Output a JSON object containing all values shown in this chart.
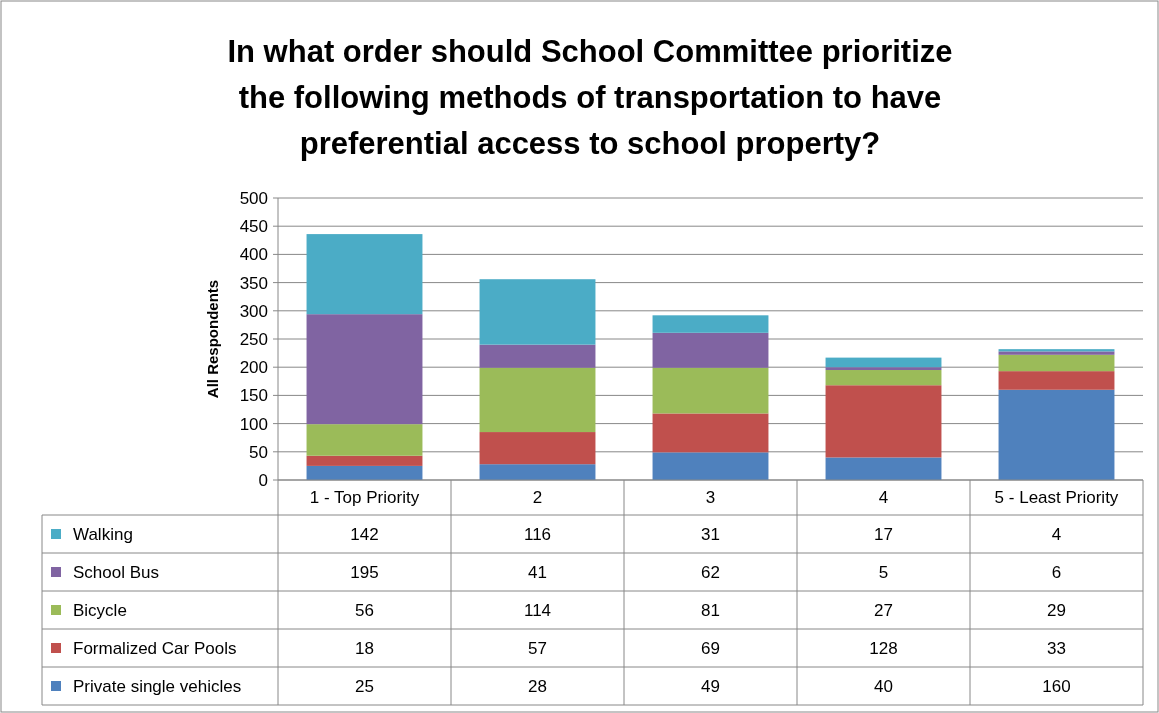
{
  "chart_data": {
    "type": "bar",
    "stacked": true,
    "title": "In what order should School Committee prioritize the following methods of transportation to have preferential access to school property?",
    "ylabel": "All Respondents",
    "categories": [
      "1 - Top Priority",
      "2",
      "3",
      "4",
      "5 - Least Priority"
    ],
    "ylim": [
      0,
      500
    ],
    "yticks": [
      0,
      50,
      100,
      150,
      200,
      250,
      300,
      350,
      400,
      450,
      500
    ],
    "grid": "y",
    "legend": "left",
    "data_labels": true,
    "series": [
      {
        "name": "Private single vehicles",
        "color": "#4f81bd",
        "values": [
          25,
          28,
          49,
          40,
          160
        ]
      },
      {
        "name": "Formalized Car Pools",
        "color": "#c0504d",
        "values": [
          18,
          57,
          69,
          128,
          33
        ]
      },
      {
        "name": "Bicycle",
        "color": "#9bbb59",
        "values": [
          56,
          114,
          81,
          27,
          29
        ]
      },
      {
        "name": "School Bus",
        "color": "#8064a2",
        "values": [
          195,
          41,
          62,
          5,
          6
        ]
      },
      {
        "name": "Walking",
        "color": "#4bacc6",
        "values": [
          142,
          116,
          31,
          17,
          4
        ]
      }
    ]
  }
}
